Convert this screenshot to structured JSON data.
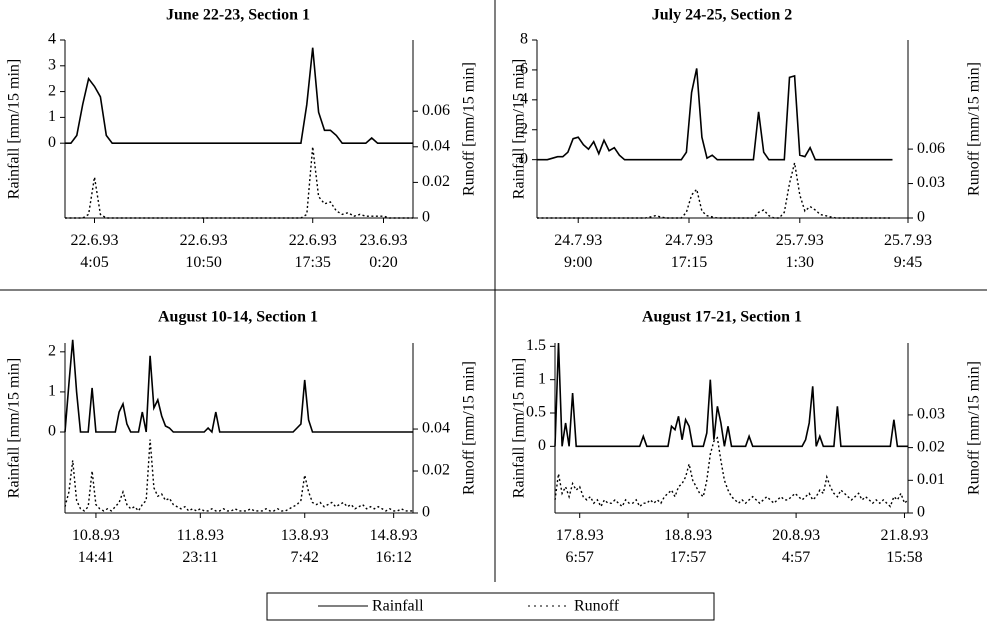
{
  "chart_data": [
    {
      "type": "line",
      "title": "June 22-23, Section 1",
      "ylabel": "Rainfall [mm/15 min]",
      "y2label": "Runoff [mm/15 min]",
      "xlim": [
        0,
        59
      ],
      "xticks": [
        {
          "value": 5,
          "label": "22.6.93\n4:05"
        },
        {
          "value": 23.5,
          "label": "22.6.93\n10:50"
        },
        {
          "value": 42,
          "label": "22.6.93\n17:35"
        },
        {
          "value": 54,
          "label": "23.6.93\n0:20"
        }
      ],
      "ylim": [
        -2.9,
        4
      ],
      "yticks": [
        0,
        1,
        2,
        3,
        4
      ],
      "y2lim": [
        0,
        0.1
      ],
      "y2ticks": [
        0,
        0.02,
        0.04,
        0.06
      ],
      "series": [
        {
          "name": "Rainfall",
          "color": "#000000",
          "line_style": "solid",
          "values": [
            0,
            0,
            0.3,
            1.5,
            2.5,
            2.2,
            1.8,
            0.3,
            0,
            0,
            0,
            0,
            0,
            0,
            0,
            0,
            0,
            0,
            0,
            0,
            0,
            0,
            0,
            0,
            0,
            0,
            0,
            0,
            0,
            0,
            0,
            0,
            0,
            0,
            0,
            0,
            0,
            0,
            0,
            0,
            0,
            1.5,
            3.7,
            1.2,
            0.5,
            0.5,
            0.3,
            0,
            0,
            0,
            0,
            0,
            0.2,
            0,
            0,
            0,
            0,
            0,
            0,
            0
          ]
        },
        {
          "name": "Runoff",
          "color": "#000000",
          "line_style": "dotted",
          "axis": "y2",
          "values": [
            0,
            0,
            0,
            0,
            0.002,
            0.023,
            0.002,
            0,
            0,
            0,
            0,
            0,
            0,
            0,
            0,
            0,
            0,
            0,
            0,
            0,
            0,
            0,
            0,
            0,
            0,
            0,
            0,
            0,
            0,
            0,
            0,
            0,
            0,
            0,
            0,
            0,
            0,
            0,
            0,
            0,
            0,
            0.002,
            0.04,
            0.012,
            0.008,
            0.009,
            0.004,
            0.002,
            0.003,
            0.001,
            0.002,
            0.001,
            0.001,
            0.001,
            0.001,
            0,
            0,
            0,
            0,
            0
          ]
        }
      ]
    },
    {
      "type": "line",
      "title": "July 24-25, Section 2",
      "ylabel": "Rainfall [mm/15 min]",
      "y2label": "Runoff [mm/15 min]",
      "xlim": [
        0,
        72
      ],
      "xticks": [
        {
          "value": 8,
          "label": "24.7.93\n9:00"
        },
        {
          "value": 29.5,
          "label": "24.7.93\n17:15"
        },
        {
          "value": 51,
          "label": "25.7.93\n1:30"
        },
        {
          "value": 72,
          "label": "25.7.93\n9:45"
        }
      ],
      "ylim": [
        -3.9,
        8
      ],
      "yticks": [
        0,
        2,
        4,
        6,
        8
      ],
      "y2lim": [
        0,
        0.155
      ],
      "y2ticks": [
        0,
        0.03,
        0.06
      ],
      "series": [
        {
          "name": "Rainfall",
          "color": "#000000",
          "line_style": "solid",
          "values": [
            0,
            0,
            0,
            0.1,
            0.2,
            0.2,
            0.5,
            1.4,
            1.5,
            1.0,
            0.7,
            1.2,
            0.4,
            1.3,
            0.6,
            0.8,
            0.3,
            0,
            0,
            0,
            0,
            0,
            0,
            0,
            0,
            0,
            0,
            0,
            0,
            0.5,
            4.5,
            6.1,
            1.5,
            0.1,
            0.3,
            0,
            0,
            0,
            0,
            0,
            0,
            0,
            0,
            3.2,
            0.5,
            0,
            0,
            0,
            0,
            5.5,
            5.6,
            0.3,
            0.2,
            0.8,
            0,
            0,
            0,
            0,
            0,
            0,
            0,
            0,
            0,
            0,
            0,
            0,
            0,
            0,
            0,
            0
          ]
        },
        {
          "name": "Runoff",
          "color": "#000000",
          "line_style": "dotted",
          "axis": "y2",
          "values": [
            0,
            0,
            0,
            0,
            0,
            0,
            0,
            0,
            0,
            0,
            0,
            0,
            0,
            0,
            0,
            0,
            0,
            0,
            0,
            0,
            0,
            0,
            0.001,
            0.002,
            0.001,
            0,
            0,
            0,
            0,
            0.005,
            0.02,
            0.025,
            0.006,
            0.002,
            0.001,
            0,
            0,
            0,
            0,
            0,
            0,
            0,
            0,
            0.005,
            0.007,
            0.002,
            0,
            0,
            0.005,
            0.03,
            0.048,
            0.02,
            0.006,
            0.01,
            0.007,
            0.003,
            0.002,
            0.001,
            0,
            0,
            0,
            0,
            0,
            0,
            0,
            0,
            0,
            0,
            0,
            0
          ]
        }
      ]
    },
    {
      "type": "line",
      "title": "August 10-14, Section 1",
      "ylabel": "Rainfall [mm/15 min]",
      "y2label": "Runoff [mm/15 min]",
      "xlim": [
        0,
        90
      ],
      "xticks": [
        {
          "value": 8,
          "label": "10.8.93\n14:41"
        },
        {
          "value": 35,
          "label": "11.8.93\n23:11"
        },
        {
          "value": 62,
          "label": "13.8.93\n7:42"
        },
        {
          "value": 85,
          "label": "14.8.93\n16:12"
        }
      ],
      "ylim": [
        -2.02,
        2.22
      ],
      "yticks": [
        0,
        1,
        2
      ],
      "y2lim": [
        0,
        0.081
      ],
      "y2ticks": [
        0,
        0.02,
        0.04
      ],
      "series": [
        {
          "name": "Rainfall",
          "color": "#000000",
          "line_style": "solid",
          "values": [
            0,
            1.2,
            2.3,
            1.0,
            0,
            0,
            0,
            1.1,
            0,
            0,
            0,
            0,
            0,
            0,
            0.5,
            0.7,
            0.2,
            0,
            0,
            0,
            0.5,
            0,
            1.9,
            0.6,
            0.8,
            0.4,
            0.15,
            0.1,
            0,
            0,
            0,
            0,
            0,
            0,
            0,
            0,
            0,
            0.1,
            0,
            0.5,
            0,
            0,
            0,
            0,
            0,
            0,
            0,
            0,
            0,
            0,
            0,
            0,
            0,
            0,
            0,
            0,
            0,
            0,
            0,
            0,
            0.1,
            0.2,
            1.3,
            0.3,
            0,
            0,
            0,
            0,
            0,
            0,
            0,
            0,
            0,
            0,
            0,
            0,
            0,
            0,
            0,
            0,
            0,
            0,
            0,
            0,
            0,
            0,
            0,
            0,
            0,
            0,
            0
          ]
        },
        {
          "name": "Runoff",
          "color": "#000000",
          "line_style": "dotted",
          "axis": "y2",
          "values": [
            0.003,
            0.01,
            0.025,
            0.006,
            0.002,
            0.001,
            0.003,
            0.02,
            0.004,
            0.002,
            0.001,
            0.002,
            0.001,
            0.003,
            0.005,
            0.01,
            0.004,
            0.002,
            0.003,
            0.001,
            0.004,
            0.006,
            0.035,
            0.012,
            0.008,
            0.009,
            0.006,
            0.007,
            0.004,
            0.003,
            0.002,
            0.003,
            0.001,
            0.002,
            0.001,
            0.002,
            0.001,
            0.001,
            0.002,
            0.001,
            0.001,
            0.002,
            0.001,
            0.001,
            0.002,
            0.001,
            0.001,
            0.001,
            0.002,
            0.001,
            0.001,
            0.001,
            0.002,
            0.001,
            0.001,
            0.002,
            0.001,
            0.001,
            0.002,
            0.003,
            0.004,
            0.006,
            0.018,
            0.01,
            0.005,
            0.004,
            0.005,
            0.003,
            0.004,
            0.005,
            0.003,
            0.004,
            0.005,
            0.003,
            0.004,
            0.002,
            0.003,
            0.004,
            0.002,
            0.003,
            0.002,
            0.003,
            0.002,
            0.001,
            0.002,
            0.001,
            0.001,
            0.002,
            0.001,
            0.001,
            0.001
          ]
        }
      ]
    },
    {
      "type": "line",
      "title": "August 17-21, Section 1",
      "ylabel": "Rainfall [mm/15 min]",
      "y2label": "Runoff [mm/15 min]",
      "xlim": [
        0,
        100
      ],
      "xticks": [
        {
          "value": 7,
          "label": "17.8.93\n6:57"
        },
        {
          "value": 37.7,
          "label": "18.8.93\n17:57"
        },
        {
          "value": 68.3,
          "label": "20.8.93\n4:57"
        },
        {
          "value": 99,
          "label": "21.8.93\n15:58"
        }
      ],
      "ylim": [
        -1,
        1.55
      ],
      "yticks": [
        0,
        0.5,
        1,
        1.5
      ],
      "y2lim": [
        0,
        0.052
      ],
      "y2ticks": [
        0,
        0.01,
        0.02,
        0.03
      ],
      "series": [
        {
          "name": "Rainfall",
          "color": "#000000",
          "line_style": "solid",
          "values": [
            0,
            1.55,
            0,
            0.35,
            0,
            0.8,
            0,
            0,
            0,
            0,
            0,
            0,
            0,
            0,
            0,
            0,
            0,
            0,
            0,
            0,
            0,
            0,
            0,
            0,
            0,
            0.15,
            0,
            0,
            0,
            0,
            0,
            0,
            0,
            0.3,
            0.25,
            0.45,
            0.1,
            0.4,
            0.3,
            0,
            0,
            0,
            0,
            0.2,
            1.0,
            0.1,
            0.6,
            0.35,
            0,
            0.3,
            0,
            0,
            0,
            0,
            0,
            0.15,
            0,
            0,
            0,
            0,
            0,
            0,
            0,
            0,
            0,
            0,
            0,
            0,
            0,
            0,
            0,
            0.1,
            0.35,
            0.9,
            0,
            0.15,
            0,
            0,
            0,
            0,
            0.6,
            0,
            0,
            0,
            0,
            0,
            0,
            0,
            0,
            0,
            0,
            0,
            0,
            0,
            0,
            0,
            0.4,
            0,
            0,
            0,
            0
          ]
        },
        {
          "name": "Runoff",
          "color": "#000000",
          "line_style": "dotted",
          "axis": "y2",
          "values": [
            0.004,
            0.012,
            0.006,
            0.008,
            0.005,
            0.009,
            0.007,
            0.008,
            0.005,
            0.004,
            0.005,
            0.003,
            0.004,
            0.002,
            0.004,
            0.003,
            0.003,
            0.004,
            0.003,
            0.002,
            0.004,
            0.003,
            0.003,
            0.004,
            0.002,
            0.003,
            0.003,
            0.004,
            0.003,
            0.004,
            0.003,
            0.005,
            0.006,
            0.007,
            0.005,
            0.008,
            0.009,
            0.011,
            0.015,
            0.01,
            0.008,
            0.006,
            0.005,
            0.01,
            0.018,
            0.022,
            0.023,
            0.016,
            0.01,
            0.007,
            0.005,
            0.004,
            0.003,
            0.004,
            0.003,
            0.004,
            0.005,
            0.004,
            0.003,
            0.004,
            0.005,
            0.004,
            0.003,
            0.004,
            0.005,
            0.004,
            0.004,
            0.005,
            0.006,
            0.005,
            0.004,
            0.005,
            0.006,
            0.004,
            0.005,
            0.007,
            0.006,
            0.011,
            0.008,
            0.006,
            0.005,
            0.007,
            0.006,
            0.005,
            0.004,
            0.005,
            0.006,
            0.004,
            0.005,
            0.004,
            0.003,
            0.004,
            0.003,
            0.004,
            0.003,
            0.002,
            0.005,
            0.004,
            0.006,
            0.003,
            0.004
          ]
        }
      ]
    }
  ]
}
